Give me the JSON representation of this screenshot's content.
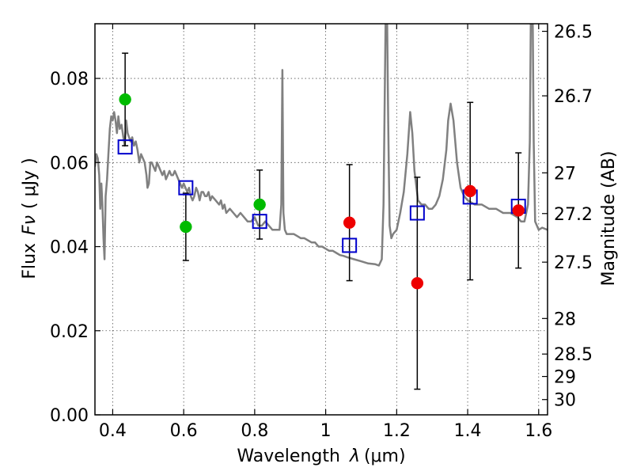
{
  "chart_data": {
    "type": "scatter",
    "title": "",
    "xlabel": "Wavelength",
    "xlabel_symbol": "λ",
    "xlabel_unit": "(μm)",
    "ylabel": "Flux",
    "ylabel_symbol": "Fν",
    "ylabel_unit": "( μJy )",
    "y2label": "Magnitude (AB)",
    "xlim": [
      0.35,
      1.625
    ],
    "ylim": [
      0.0,
      0.093
    ],
    "grid": true,
    "x_ticks": [
      {
        "value": 0.4,
        "label": "0.4"
      },
      {
        "value": 0.6,
        "label": "0.6"
      },
      {
        "value": 0.8,
        "label": "0.8"
      },
      {
        "value": 1.0,
        "label": "1"
      },
      {
        "value": 1.2,
        "label": "1.2"
      },
      {
        "value": 1.4,
        "label": "1.4"
      },
      {
        "value": 1.6,
        "label": "1.6"
      }
    ],
    "y_ticks": [
      {
        "value": 0.0,
        "label": "0.00"
      },
      {
        "value": 0.02,
        "label": "0.02"
      },
      {
        "value": 0.04,
        "label": "0.04"
      },
      {
        "value": 0.06,
        "label": "0.06"
      },
      {
        "value": 0.08,
        "label": "0.08"
      }
    ],
    "y2_ticks": [
      {
        "mag": 26.5,
        "label": "26.5"
      },
      {
        "mag": 26.7,
        "label": "26.7"
      },
      {
        "mag": 27.0,
        "label": "27"
      },
      {
        "mag": 27.2,
        "label": "27.2"
      },
      {
        "mag": 27.5,
        "label": "27.5"
      },
      {
        "mag": 28.0,
        "label": "28"
      },
      {
        "mag": 28.5,
        "label": "28.5"
      },
      {
        "mag": 29.0,
        "label": "29"
      },
      {
        "mag": 30.0,
        "label": "30"
      }
    ],
    "model_spectrum": {
      "color": "#808080",
      "points": [
        [
          0.35,
          0.059
        ],
        [
          0.354,
          0.062
        ],
        [
          0.358,
          0.061
        ],
        [
          0.362,
          0.057
        ],
        [
          0.365,
          0.049
        ],
        [
          0.368,
          0.055
        ],
        [
          0.371,
          0.05
        ],
        [
          0.374,
          0.042
        ],
        [
          0.377,
          0.037
        ],
        [
          0.38,
          0.052
        ],
        [
          0.384,
          0.056
        ],
        [
          0.388,
          0.062
        ],
        [
          0.392,
          0.068
        ],
        [
          0.396,
          0.071
        ],
        [
          0.4,
          0.07
        ],
        [
          0.404,
          0.072
        ],
        [
          0.408,
          0.07
        ],
        [
          0.412,
          0.067
        ],
        [
          0.416,
          0.071
        ],
        [
          0.42,
          0.068
        ],
        [
          0.425,
          0.069
        ],
        [
          0.43,
          0.066
        ],
        [
          0.434,
          0.064
        ],
        [
          0.438,
          0.07
        ],
        [
          0.442,
          0.067
        ],
        [
          0.446,
          0.066
        ],
        [
          0.45,
          0.065
        ],
        [
          0.455,
          0.066
        ],
        [
          0.46,
          0.064
        ],
        [
          0.465,
          0.065
        ],
        [
          0.47,
          0.063
        ],
        [
          0.475,
          0.06
        ],
        [
          0.48,
          0.062
        ],
        [
          0.485,
          0.061
        ],
        [
          0.49,
          0.06
        ],
        [
          0.495,
          0.057
        ],
        [
          0.498,
          0.054
        ],
        [
          0.502,
          0.055
        ],
        [
          0.506,
          0.06
        ],
        [
          0.51,
          0.06
        ],
        [
          0.515,
          0.059
        ],
        [
          0.52,
          0.058
        ],
        [
          0.525,
          0.06
        ],
        [
          0.53,
          0.059
        ],
        [
          0.535,
          0.058
        ],
        [
          0.54,
          0.057
        ],
        [
          0.545,
          0.058
        ],
        [
          0.55,
          0.056
        ],
        [
          0.555,
          0.057
        ],
        [
          0.56,
          0.058
        ],
        [
          0.565,
          0.057
        ],
        [
          0.57,
          0.057
        ],
        [
          0.575,
          0.058
        ],
        [
          0.58,
          0.057
        ],
        [
          0.585,
          0.056
        ],
        [
          0.59,
          0.055
        ],
        [
          0.595,
          0.054
        ],
        [
          0.6,
          0.055
        ],
        [
          0.605,
          0.054
        ],
        [
          0.61,
          0.053
        ],
        [
          0.615,
          0.054
        ],
        [
          0.62,
          0.052
        ],
        [
          0.625,
          0.051
        ],
        [
          0.63,
          0.052
        ],
        [
          0.635,
          0.054
        ],
        [
          0.64,
          0.053
        ],
        [
          0.645,
          0.051
        ],
        [
          0.65,
          0.053
        ],
        [
          0.655,
          0.053
        ],
        [
          0.66,
          0.052
        ],
        [
          0.665,
          0.052
        ],
        [
          0.67,
          0.053
        ],
        [
          0.675,
          0.051
        ],
        [
          0.68,
          0.052
        ],
        [
          0.69,
          0.051
        ],
        [
          0.7,
          0.05
        ],
        [
          0.705,
          0.051
        ],
        [
          0.71,
          0.049
        ],
        [
          0.715,
          0.05
        ],
        [
          0.72,
          0.048
        ],
        [
          0.73,
          0.049
        ],
        [
          0.74,
          0.048
        ],
        [
          0.75,
          0.047
        ],
        [
          0.76,
          0.048
        ],
        [
          0.77,
          0.047
        ],
        [
          0.78,
          0.046
        ],
        [
          0.79,
          0.046
        ],
        [
          0.8,
          0.047
        ],
        [
          0.81,
          0.045
        ],
        [
          0.82,
          0.045
        ],
        [
          0.83,
          0.046
        ],
        [
          0.84,
          0.045
        ],
        [
          0.85,
          0.044
        ],
        [
          0.86,
          0.044
        ],
        [
          0.87,
          0.044
        ],
        [
          0.875,
          0.05
        ],
        [
          0.878,
          0.082
        ],
        [
          0.881,
          0.048
        ],
        [
          0.885,
          0.044
        ],
        [
          0.89,
          0.043
        ],
        [
          0.9,
          0.043
        ],
        [
          0.91,
          0.043
        ],
        [
          0.92,
          0.0425
        ],
        [
          0.93,
          0.042
        ],
        [
          0.94,
          0.042
        ],
        [
          0.95,
          0.0415
        ],
        [
          0.96,
          0.041
        ],
        [
          0.97,
          0.041
        ],
        [
          0.98,
          0.04
        ],
        [
          0.99,
          0.04
        ],
        [
          1.0,
          0.0395
        ],
        [
          1.01,
          0.039
        ],
        [
          1.02,
          0.039
        ],
        [
          1.03,
          0.0385
        ],
        [
          1.04,
          0.038
        ],
        [
          1.05,
          0.0378
        ],
        [
          1.06,
          0.0375
        ],
        [
          1.08,
          0.037
        ],
        [
          1.1,
          0.0365
        ],
        [
          1.12,
          0.036
        ],
        [
          1.14,
          0.0358
        ],
        [
          1.15,
          0.0355
        ],
        [
          1.158,
          0.037
        ],
        [
          1.163,
          0.05
        ],
        [
          1.167,
          0.08
        ],
        [
          1.169,
          0.095
        ],
        [
          1.173,
          0.095
        ],
        [
          1.176,
          0.07
        ],
        [
          1.18,
          0.045
        ],
        [
          1.185,
          0.042
        ],
        [
          1.19,
          0.043
        ],
        [
          1.2,
          0.044
        ],
        [
          1.21,
          0.048
        ],
        [
          1.22,
          0.053
        ],
        [
          1.23,
          0.062
        ],
        [
          1.238,
          0.072
        ],
        [
          1.244,
          0.067
        ],
        [
          1.25,
          0.058
        ],
        [
          1.26,
          0.051
        ],
        [
          1.27,
          0.05
        ],
        [
          1.28,
          0.05
        ],
        [
          1.29,
          0.049
        ],
        [
          1.3,
          0.049
        ],
        [
          1.31,
          0.05
        ],
        [
          1.32,
          0.052
        ],
        [
          1.33,
          0.056
        ],
        [
          1.34,
          0.063
        ],
        [
          1.345,
          0.07
        ],
        [
          1.352,
          0.074
        ],
        [
          1.36,
          0.07
        ],
        [
          1.37,
          0.06
        ],
        [
          1.38,
          0.054
        ],
        [
          1.39,
          0.052
        ],
        [
          1.4,
          0.051
        ],
        [
          1.42,
          0.05
        ],
        [
          1.44,
          0.05
        ],
        [
          1.46,
          0.049
        ],
        [
          1.48,
          0.049
        ],
        [
          1.5,
          0.048
        ],
        [
          1.52,
          0.048
        ],
        [
          1.54,
          0.047
        ],
        [
          1.55,
          0.046
        ],
        [
          1.56,
          0.046
        ],
        [
          1.57,
          0.05
        ],
        [
          1.575,
          0.065
        ],
        [
          1.578,
          0.095
        ],
        [
          1.583,
          0.095
        ],
        [
          1.586,
          0.065
        ],
        [
          1.59,
          0.046
        ],
        [
          1.6,
          0.044
        ],
        [
          1.61,
          0.0445
        ],
        [
          1.625,
          0.044
        ]
      ]
    },
    "series": [
      {
        "marker": "square-open",
        "color": "#0000cc",
        "points": [
          {
            "x": 0.435,
            "y": 0.0637
          },
          {
            "x": 0.606,
            "y": 0.054
          },
          {
            "x": 0.814,
            "y": 0.046
          },
          {
            "x": 1.067,
            "y": 0.0403
          },
          {
            "x": 1.258,
            "y": 0.048
          },
          {
            "x": 1.407,
            "y": 0.0518
          },
          {
            "x": 1.543,
            "y": 0.0496
          }
        ]
      },
      {
        "marker": "circle-filled",
        "color": "#00bb00",
        "points": [
          {
            "x": 0.435,
            "y": 0.075,
            "err": 0.011
          },
          {
            "x": 0.606,
            "y": 0.0447,
            "err": 0.008
          },
          {
            "x": 0.814,
            "y": 0.05,
            "err": 0.0082
          }
        ]
      },
      {
        "marker": "circle-filled",
        "color": "#ee0000",
        "points": [
          {
            "x": 1.067,
            "y": 0.0457,
            "err": 0.0138
          },
          {
            "x": 1.258,
            "y": 0.0313,
            "err": 0.0252
          },
          {
            "x": 1.407,
            "y": 0.0532,
            "err": 0.0211
          },
          {
            "x": 1.543,
            "y": 0.0486,
            "err": 0.0137
          }
        ]
      }
    ]
  }
}
